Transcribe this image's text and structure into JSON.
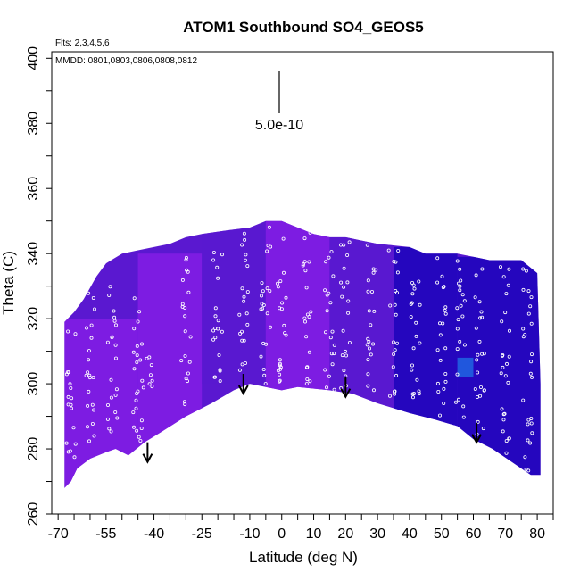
{
  "chart_data": {
    "type": "heatmap",
    "title": "ATOM1 Southbound SO4_GEOS5",
    "subtitle_flights": "Flts: 2,3,4,5,6",
    "subtitle_dates": "MMDD: 0801,0803,0806,0808,0812",
    "xlabel": "Latitude (deg N)",
    "ylabel": "Theta (C)",
    "xlim": [
      -72,
      85
    ],
    "ylim": [
      260,
      402
    ],
    "x_tick_labels": [
      -70,
      -55,
      -40,
      -25,
      -10,
      0,
      10,
      20,
      30,
      40,
      50,
      60,
      70,
      80
    ],
    "y_tick_labels": [
      260,
      280,
      300,
      320,
      340,
      360,
      380,
      400
    ],
    "scale_bar_label": "5.0e-10",
    "colors": {
      "high": "#8a1ee8",
      "mid": "#5a18d0",
      "low": "#1400b8",
      "hotspot": "#2060e0",
      "sample_points": "#ffffff"
    },
    "domain_top_theta": [
      [
        -68,
        319
      ],
      [
        -65,
        322
      ],
      [
        -62,
        326
      ],
      [
        -58,
        333
      ],
      [
        -55,
        337
      ],
      [
        -50,
        340
      ],
      [
        -45,
        341
      ],
      [
        -40,
        342
      ],
      [
        -35,
        343
      ],
      [
        -30,
        345
      ],
      [
        -25,
        346
      ],
      [
        -18,
        347
      ],
      [
        -10,
        348
      ],
      [
        -5,
        350
      ],
      [
        0,
        350
      ],
      [
        5,
        348
      ],
      [
        10,
        346
      ],
      [
        15,
        345
      ],
      [
        20,
        345
      ],
      [
        25,
        344
      ],
      [
        30,
        343
      ],
      [
        40,
        342
      ],
      [
        45,
        340
      ],
      [
        50,
        340
      ],
      [
        55,
        340
      ],
      [
        60,
        339
      ],
      [
        65,
        338
      ],
      [
        70,
        338
      ],
      [
        75,
        338
      ],
      [
        80,
        334
      ],
      [
        81,
        300
      ]
    ],
    "domain_bottom_theta": [
      [
        81,
        272
      ],
      [
        78,
        272
      ],
      [
        72,
        276
      ],
      [
        66,
        280
      ],
      [
        60,
        283
      ],
      [
        55,
        287
      ],
      [
        48,
        289
      ],
      [
        40,
        291
      ],
      [
        30,
        294
      ],
      [
        22,
        297
      ],
      [
        15,
        298
      ],
      [
        5,
        299
      ],
      [
        0,
        298
      ],
      [
        -5,
        299
      ],
      [
        -10,
        300
      ],
      [
        -15,
        298
      ],
      [
        -22,
        294
      ],
      [
        -30,
        290
      ],
      [
        -38,
        285
      ],
      [
        -43,
        282
      ],
      [
        -48,
        278
      ],
      [
        -52,
        280
      ],
      [
        -55,
        279
      ],
      [
        -60,
        277
      ],
      [
        -64,
        274
      ],
      [
        -66,
        270
      ],
      [
        -68,
        268
      ]
    ],
    "concentration_patches": [
      {
        "lat": [
          -68,
          -45
        ],
        "theta": [
          268,
          320
        ],
        "level": "high"
      },
      {
        "lat": [
          -45,
          -25
        ],
        "theta": [
          280,
          340
        ],
        "level": "high"
      },
      {
        "lat": [
          -25,
          -5
        ],
        "theta": [
          300,
          348
        ],
        "level": "mid"
      },
      {
        "lat": [
          -5,
          15
        ],
        "theta": [
          298,
          350
        ],
        "level": "high"
      },
      {
        "lat": [
          15,
          35
        ],
        "theta": [
          297,
          345
        ],
        "level": "mid"
      },
      {
        "lat": [
          35,
          55
        ],
        "theta": [
          287,
          342
        ],
        "level": "low"
      },
      {
        "lat": [
          55,
          81
        ],
        "theta": [
          272,
          339
        ],
        "level": "low"
      },
      {
        "lat": [
          55,
          60
        ],
        "theta": [
          302,
          308
        ],
        "level": "hotspot"
      }
    ],
    "arrow_markers_lat_theta": [
      [
        -42,
        276
      ],
      [
        -12,
        297
      ],
      [
        20,
        296
      ],
      [
        61,
        282
      ]
    ],
    "sample_tracks": [
      {
        "lat": -66,
        "theta_range": [
          274,
          318
        ]
      },
      {
        "lat": -60,
        "theta_range": [
          280,
          330
        ]
      },
      {
        "lat": -53,
        "theta_range": [
          285,
          335
        ]
      },
      {
        "lat": -45,
        "theta_range": [
          282,
          338
        ]
      },
      {
        "lat": -42,
        "theta_range": [
          290,
          310
        ]
      },
      {
        "lat": -30,
        "theta_range": [
          292,
          340
        ]
      },
      {
        "lat": -20,
        "theta_range": [
          298,
          345
        ]
      },
      {
        "lat": -12,
        "theta_range": [
          300,
          348
        ]
      },
      {
        "lat": -5,
        "theta_range": [
          300,
          350
        ]
      },
      {
        "lat": 0,
        "theta_range": [
          300,
          350
        ]
      },
      {
        "lat": 8,
        "theta_range": [
          300,
          348
        ]
      },
      {
        "lat": 15,
        "theta_range": [
          298,
          345
        ]
      },
      {
        "lat": 20,
        "theta_range": [
          298,
          345
        ]
      },
      {
        "lat": 28,
        "theta_range": [
          296,
          343
        ]
      },
      {
        "lat": 35,
        "theta_range": [
          293,
          342
        ]
      },
      {
        "lat": 42,
        "theta_range": [
          291,
          341
        ]
      },
      {
        "lat": 50,
        "theta_range": [
          289,
          340
        ]
      },
      {
        "lat": 56,
        "theta_range": [
          288,
          339
        ]
      },
      {
        "lat": 62,
        "theta_range": [
          283,
          338
        ]
      },
      {
        "lat": 70,
        "theta_range": [
          277,
          338
        ]
      },
      {
        "lat": 77,
        "theta_range": [
          273,
          336
        ]
      }
    ]
  }
}
